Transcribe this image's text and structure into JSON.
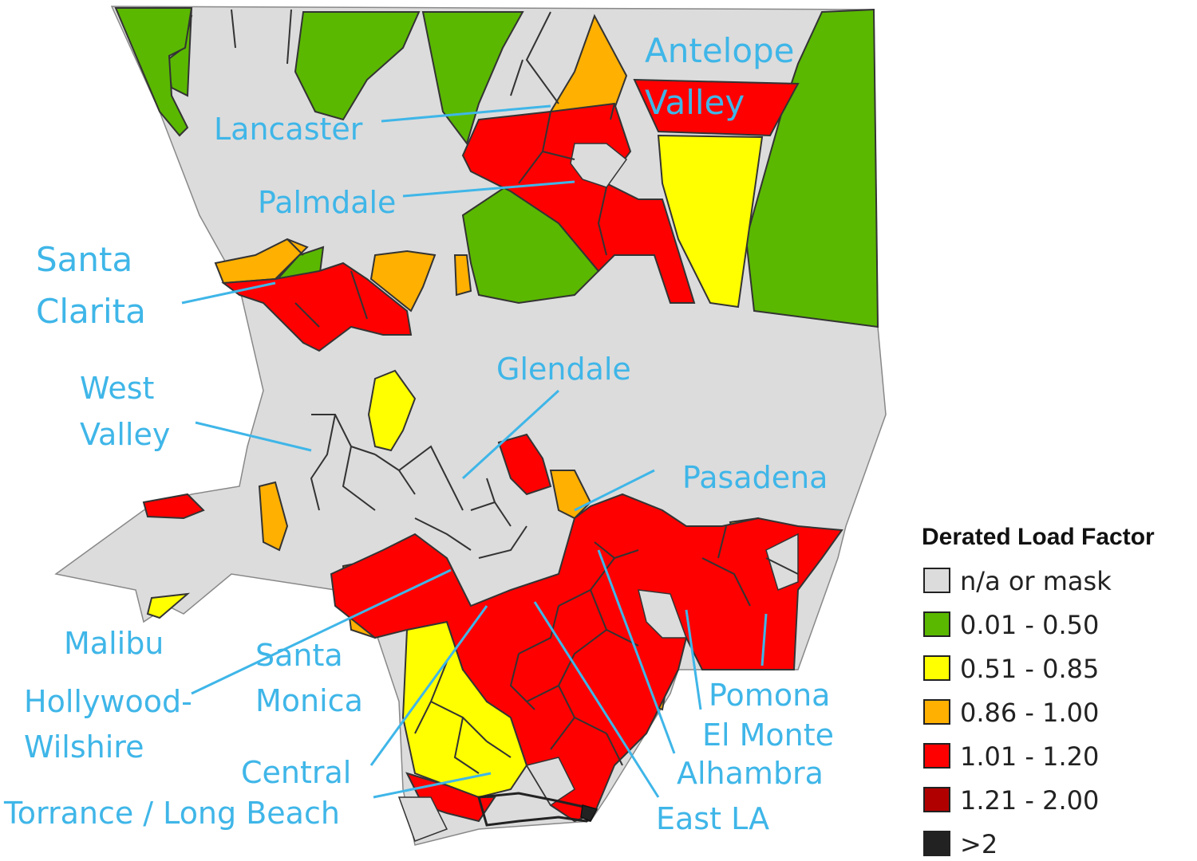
{
  "colors": {
    "na": "#dcdcdc",
    "c1": "#5ab800",
    "c2": "#ffff00",
    "c3": "#ffb000",
    "c4": "#ff0000",
    "c5": "#b00000",
    "c6": "#222222",
    "label": "#3fb6e8"
  },
  "labels": {
    "antelope": "Antelope",
    "valley": "Valley",
    "lancaster": "Lancaster",
    "palmdale": "Palmdale",
    "santa": "Santa",
    "clarita": "Clarita",
    "west": "West",
    "west_valley": "Valley",
    "glendale": "Glendale",
    "pasadena": "Pasadena",
    "malibu": "Malibu",
    "hollywood": "Hollywood-",
    "wilshire": "Wilshire",
    "santa_m": "Santa",
    "monica": "Monica",
    "central": "Central",
    "torrance": "Torrance / Long Beach",
    "pomona": "Pomona",
    "elmonte": "El Monte",
    "alhambra": "Alhambra",
    "eastla": "East LA"
  },
  "legend": {
    "title": "Derated Load Factor",
    "items": [
      {
        "label": "n/a or mask",
        "color": "#dcdcdc"
      },
      {
        "label": "0.01 - 0.50",
        "color": "#5ab800"
      },
      {
        "label": "0.51 - 0.85",
        "color": "#ffff00"
      },
      {
        "label": "0.86 - 1.00",
        "color": "#ffb000"
      },
      {
        "label": "1.01 - 1.20",
        "color": "#ff0000"
      },
      {
        "label": "1.21 - 2.00",
        "color": "#b00000"
      },
      {
        "label": ">2",
        "color": "#222222"
      }
    ]
  }
}
